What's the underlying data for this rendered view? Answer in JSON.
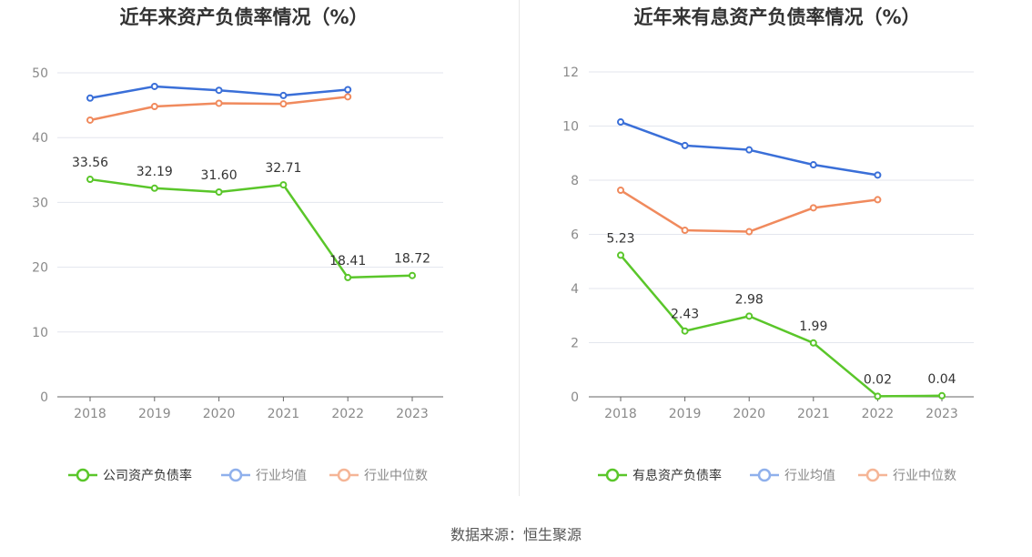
{
  "source_label": "数据来源：恒生聚源",
  "chart_data": [
    {
      "type": "line",
      "title": "近年来资产负债率情况（%）",
      "x": [
        "2018",
        "2019",
        "2020",
        "2021",
        "2022",
        "2023"
      ],
      "ylim": [
        0,
        50
      ],
      "yticks": [
        0,
        10,
        20,
        30,
        40,
        50
      ],
      "grid": true,
      "legend_position": "bottom",
      "series": [
        {
          "name": "公司资产负债率",
          "color": "#5ac62a",
          "values": [
            33.56,
            32.19,
            31.6,
            32.71,
            18.41,
            18.72
          ],
          "labels": [
            "33.56",
            "32.19",
            "31.60",
            "32.71",
            "18.41",
            "18.72"
          ],
          "show_labels": true
        },
        {
          "name": "行业均值",
          "color": "#3a6fd8",
          "values": [
            46.1,
            47.9,
            47.3,
            46.5,
            47.4,
            null
          ],
          "show_labels": false
        },
        {
          "name": "行业中位数",
          "color": "#f08a5d",
          "values": [
            42.7,
            44.8,
            45.3,
            45.2,
            46.3,
            null
          ],
          "show_labels": false
        }
      ]
    },
    {
      "type": "line",
      "title": "近年来有息资产负债率情况（%）",
      "x": [
        "2018",
        "2019",
        "2020",
        "2021",
        "2022",
        "2023"
      ],
      "ylim": [
        0,
        12
      ],
      "yticks": [
        0,
        2,
        4,
        6,
        8,
        10,
        12
      ],
      "grid": true,
      "legend_position": "bottom",
      "series": [
        {
          "name": "有息资产负债率",
          "color": "#5ac62a",
          "values": [
            5.23,
            2.43,
            2.98,
            1.99,
            0.02,
            0.04
          ],
          "labels": [
            "5.23",
            "2.43",
            "2.98",
            "1.99",
            "0.02",
            "0.04"
          ],
          "show_labels": true
        },
        {
          "name": "行业均值",
          "color": "#3a6fd8",
          "values": [
            10.15,
            9.28,
            9.12,
            8.57,
            8.19,
            null
          ],
          "show_labels": false
        },
        {
          "name": "行业中位数",
          "color": "#f08a5d",
          "values": [
            7.63,
            6.15,
            6.1,
            6.98,
            7.28,
            null
          ],
          "show_labels": false
        }
      ]
    }
  ]
}
